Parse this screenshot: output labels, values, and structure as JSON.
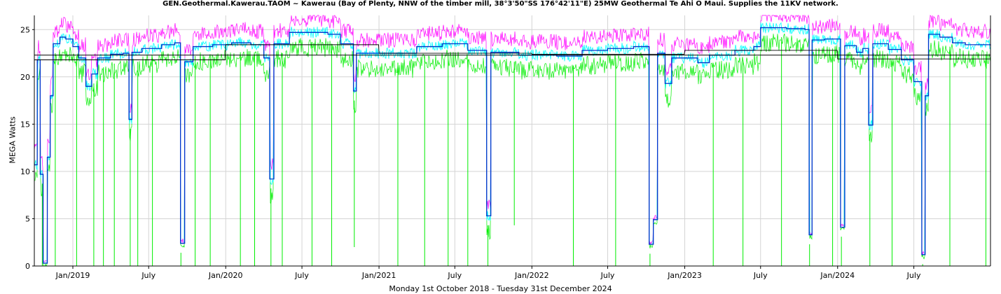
{
  "chart_data": {
    "type": "line",
    "title": "GEN.Geothermal.Kawerau.TAOM ~ Kawerau (Bay of Plenty, NNW of the timber mill, 38°3'50\"SS 176°42'11\"E) 25MW Geothermal Te Ahi O Maui. Supplies the 11KV network.",
    "xlabel": "Monday 1st October 2018  -  Tuesday 31st December 2024",
    "ylabel": "MEGA Watts",
    "xlim": [
      "2018-10-01",
      "2024-12-31"
    ],
    "ylim": [
      0,
      26.5
    ],
    "grid": true,
    "x_tick_labels": [
      "Jan/2019",
      "July",
      "Jan/2020",
      "July",
      "Jan/2021",
      "July",
      "Jan/2022",
      "July",
      "Jan/2023",
      "July",
      "Jan/2024",
      "July"
    ],
    "x_ticks": [
      "2019-01-01",
      "2019-07-01",
      "2020-01-01",
      "2020-07-01",
      "2021-01-01",
      "2021-07-01",
      "2022-01-01",
      "2022-07-01",
      "2023-01-01",
      "2023-07-01",
      "2024-01-01",
      "2024-07-01"
    ],
    "y_ticks": [
      0,
      5,
      10,
      15,
      20,
      25
    ],
    "colors": {
      "max": "#ff00ff",
      "mean": "#00ffff",
      "min": "#00ee00",
      "weekly": "#0033cc",
      "annual": "#000000"
    },
    "weekly_mean": [
      [
        "2018-10-01",
        10.7
      ],
      [
        "2018-10-08",
        21.8
      ],
      [
        "2018-10-15",
        9.7
      ],
      [
        "2018-10-22",
        0.3
      ],
      [
        "2018-11-01",
        11.5
      ],
      [
        "2018-11-08",
        18.0
      ],
      [
        "2018-11-15",
        23.5
      ],
      [
        "2018-12-01",
        24.2
      ],
      [
        "2018-12-15",
        24.0
      ],
      [
        "2019-01-01",
        23.2
      ],
      [
        "2019-01-15",
        22.0
      ],
      [
        "2019-02-01",
        19.0
      ],
      [
        "2019-02-15",
        20.3
      ],
      [
        "2019-03-01",
        22.0
      ],
      [
        "2019-04-01",
        22.4
      ],
      [
        "2019-05-01",
        22.5
      ],
      [
        "2019-05-15",
        15.5
      ],
      [
        "2019-05-22",
        22.6
      ],
      [
        "2019-06-15",
        23.0
      ],
      [
        "2019-08-01",
        23.4
      ],
      [
        "2019-09-01",
        23.6
      ],
      [
        "2019-09-15",
        2.4
      ],
      [
        "2019-09-25",
        21.6
      ],
      [
        "2019-10-15",
        23.2
      ],
      [
        "2019-12-01",
        23.4
      ],
      [
        "2020-01-15",
        23.6
      ],
      [
        "2020-03-01",
        23.4
      ],
      [
        "2020-04-01",
        22.0
      ],
      [
        "2020-04-15",
        9.2
      ],
      [
        "2020-04-25",
        23.5
      ],
      [
        "2020-06-01",
        24.7
      ],
      [
        "2020-09-01",
        24.5
      ],
      [
        "2020-10-01",
        23.5
      ],
      [
        "2020-11-01",
        18.5
      ],
      [
        "2020-11-08",
        22.5
      ],
      [
        "2020-12-01",
        22.5
      ],
      [
        "2021-02-01",
        22.5
      ],
      [
        "2021-04-01",
        23.2
      ],
      [
        "2021-06-01",
        23.5
      ],
      [
        "2021-08-01",
        22.8
      ],
      [
        "2021-09-15",
        5.3
      ],
      [
        "2021-09-25",
        22.6
      ],
      [
        "2021-12-01",
        22.3
      ],
      [
        "2022-03-01",
        22.2
      ],
      [
        "2022-05-01",
        22.8
      ],
      [
        "2022-07-01",
        23.0
      ],
      [
        "2022-09-01",
        23.2
      ],
      [
        "2022-10-08",
        2.3
      ],
      [
        "2022-10-18",
        4.9
      ],
      [
        "2022-10-28",
        22.5
      ],
      [
        "2022-11-15",
        19.3
      ],
      [
        "2022-12-01",
        22.0
      ],
      [
        "2023-02-01",
        21.5
      ],
      [
        "2023-03-01",
        22.3
      ],
      [
        "2023-05-01",
        22.8
      ],
      [
        "2023-06-15",
        23.2
      ],
      [
        "2023-07-01",
        25.2
      ],
      [
        "2023-09-01",
        25.1
      ],
      [
        "2023-10-15",
        25.0
      ],
      [
        "2023-10-25",
        3.3
      ],
      [
        "2023-11-01",
        23.9
      ],
      [
        "2023-12-01",
        24.0
      ],
      [
        "2024-01-08",
        4.1
      ],
      [
        "2024-01-18",
        23.3
      ],
      [
        "2024-02-15",
        22.6
      ],
      [
        "2024-03-01",
        23.0
      ],
      [
        "2024-03-15",
        14.9
      ],
      [
        "2024-03-25",
        23.5
      ],
      [
        "2024-05-01",
        22.9
      ],
      [
        "2024-06-01",
        21.8
      ],
      [
        "2024-07-01",
        19.5
      ],
      [
        "2024-07-20",
        1.2
      ],
      [
        "2024-07-28",
        18.0
      ],
      [
        "2024-08-05",
        24.5
      ],
      [
        "2024-09-01",
        24.2
      ],
      [
        "2024-10-01",
        23.6
      ],
      [
        "2024-11-01",
        23.4
      ],
      [
        "2024-12-31",
        23.3
      ]
    ],
    "annual_mean": [
      [
        "2018-10-01",
        21.8
      ],
      [
        "2019-01-01",
        21.8
      ],
      [
        "2019-12-31",
        21.8
      ],
      [
        "2020-01-01",
        23.4
      ],
      [
        "2020-12-31",
        23.4
      ],
      [
        "2021-01-01",
        22.5
      ],
      [
        "2021-12-31",
        22.5
      ],
      [
        "2022-01-01",
        22.4
      ],
      [
        "2022-12-31",
        22.4
      ],
      [
        "2023-01-01",
        22.8
      ],
      [
        "2023-12-31",
        22.8
      ],
      [
        "2024-01-01",
        21.9
      ],
      [
        "2024-12-31",
        21.9
      ]
    ],
    "reference_lines": [
      22.3
    ],
    "dips": [
      [
        "2018-10-20",
        0
      ],
      [
        "2018-11-20",
        0
      ],
      [
        "2019-01-10",
        0
      ],
      [
        "2019-02-20",
        0
      ],
      [
        "2019-03-15",
        0
      ],
      [
        "2019-04-10",
        0
      ],
      [
        "2019-05-18",
        0
      ],
      [
        "2019-06-05",
        0
      ],
      [
        "2019-07-10",
        0
      ],
      [
        "2019-09-16",
        0
      ],
      [
        "2019-10-20",
        0
      ],
      [
        "2019-11-25",
        0
      ],
      [
        "2020-02-05",
        0
      ],
      [
        "2020-03-10",
        0
      ],
      [
        "2020-04-18",
        0
      ],
      [
        "2020-05-15",
        0
      ],
      [
        "2020-07-25",
        0
      ],
      [
        "2020-09-10",
        0
      ],
      [
        "2020-11-03",
        2.0
      ],
      [
        "2021-02-15",
        0
      ],
      [
        "2021-04-20",
        0
      ],
      [
        "2021-06-15",
        0
      ],
      [
        "2021-08-01",
        0
      ],
      [
        "2021-09-18",
        0
      ],
      [
        "2021-11-20",
        4.3
      ],
      [
        "2022-04-10",
        0
      ],
      [
        "2022-07-20",
        0
      ],
      [
        "2022-10-10",
        0
      ],
      [
        "2023-03-10",
        0
      ],
      [
        "2023-05-20",
        0
      ],
      [
        "2023-08-20",
        0
      ],
      [
        "2023-10-26",
        0
      ],
      [
        "2023-12-20",
        0
      ],
      [
        "2024-01-10",
        0
      ],
      [
        "2024-03-18",
        0
      ],
      [
        "2024-05-10",
        0
      ],
      [
        "2024-07-22",
        0
      ],
      [
        "2024-09-25",
        0
      ],
      [
        "2024-12-20",
        0
      ]
    ]
  }
}
